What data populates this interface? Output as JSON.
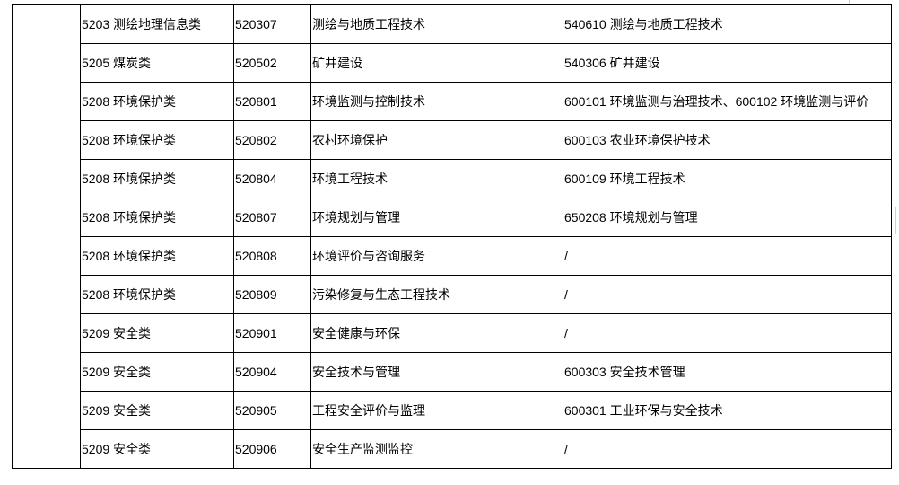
{
  "rows": [
    [
      "5203 测绘地理信息类",
      "520307",
      "测绘与地质工程技术",
      "540610 测绘与地质工程技术"
    ],
    [
      "5205 煤炭类",
      "520502",
      "矿井建设",
      "540306 矿井建设"
    ],
    [
      "5208 环境保护类",
      "520801",
      "环境监测与控制技术",
      "600101 环境监测与治理技术、600102 环境监测与评价"
    ],
    [
      "5208 环境保护类",
      "520802",
      "农村环境保护",
      "600103 农业环境保护技术"
    ],
    [
      "5208 环境保护类",
      "520804",
      "环境工程技术",
      "600109 环境工程技术"
    ],
    [
      "5208 环境保护类",
      "520807",
      "环境规划与管理",
      "650208 环境规划与管理"
    ],
    [
      "5208 环境保护类",
      "520808",
      "环境评价与咨询服务",
      "/"
    ],
    [
      "5208 环境保护类",
      "520809",
      "污染修复与生态工程技术",
      "/"
    ],
    [
      "5209 安全类",
      "520901",
      "安全健康与环保",
      "/"
    ],
    [
      "5209 安全类",
      "520904",
      "安全技术与管理",
      "600303 安全技术管理"
    ],
    [
      "5209 安全类",
      "520905",
      "工程安全评价与监理",
      "600301 工业环保与安全技术"
    ],
    [
      "5209 安全类",
      "520906",
      "安全生产监测监控",
      "/"
    ]
  ]
}
